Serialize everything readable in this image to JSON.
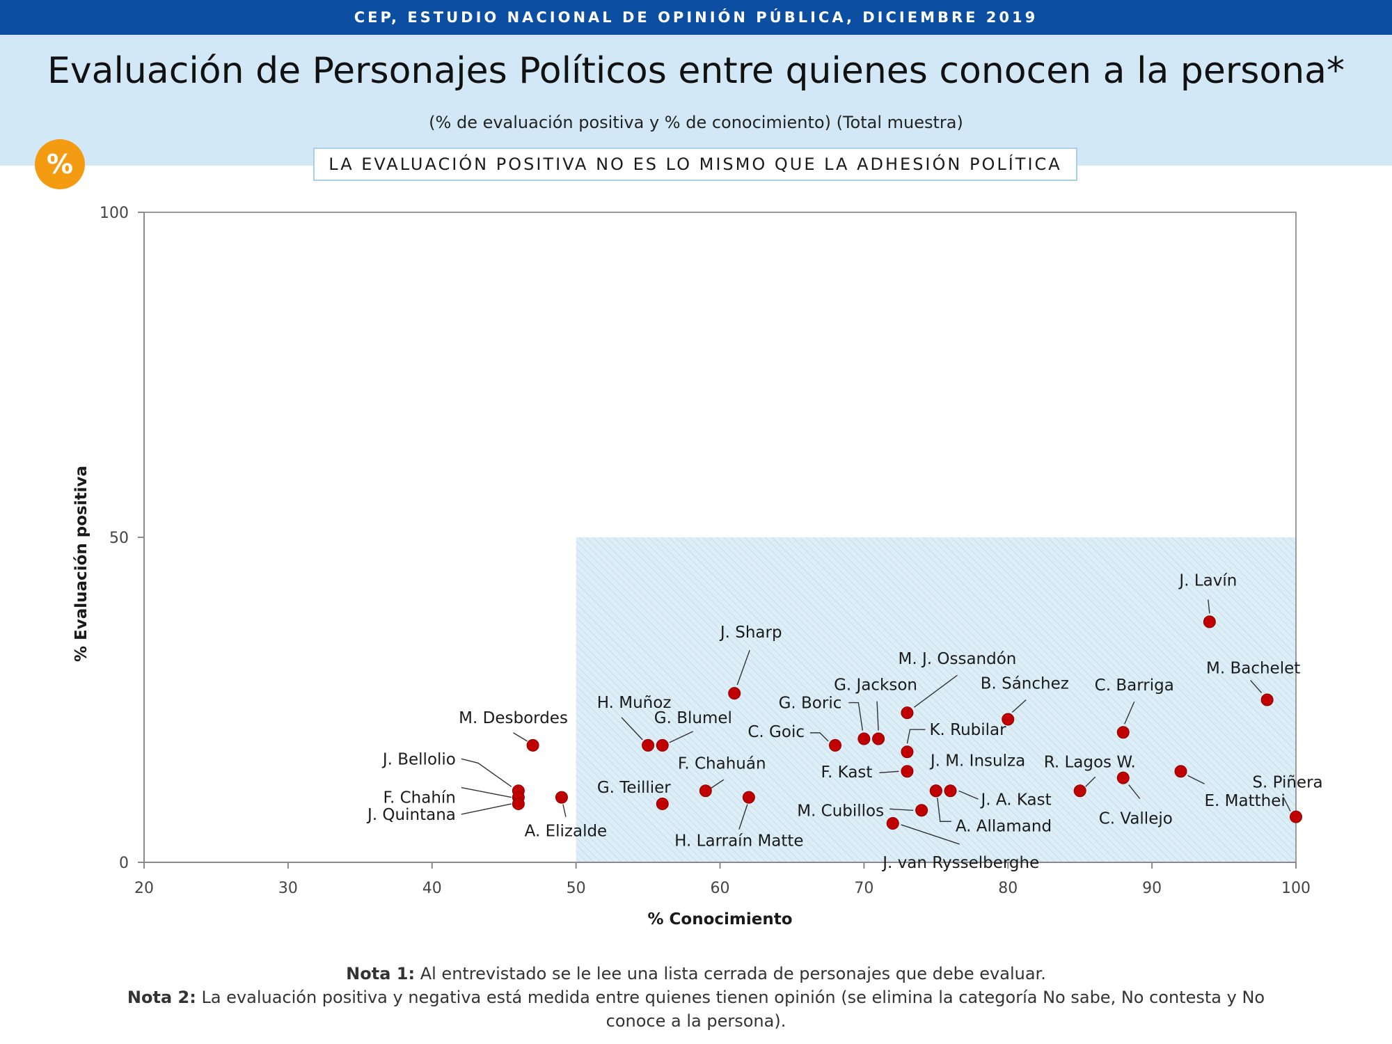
{
  "header": {
    "banner": "CEP, ESTUDIO NACIONAL DE OPINIÓN PÚBLICA, DICIEMBRE 2019",
    "title": "Evaluación de Personajes Políticos entre quienes conocen a la persona*",
    "subtitle": "(% de evaluación positiva y % de conocimiento) (Total muestra)",
    "badge": "%",
    "callout": "LA EVALUACIÓN POSITIVA NO ES LO MISMO QUE LA ADHESIÓN POLÍTICA"
  },
  "notes": {
    "note1_label": "Nota 1:",
    "note1_text": " Al entrevistado se le lee una lista cerrada de personajes que debe evaluar.",
    "note2_label": "Nota 2:",
    "note2_text": " La evaluación positiva y negativa está medida entre quienes tienen opinión (se elimina la categoría No sabe, No contesta y No conoce a la persona)."
  },
  "colors": {
    "banner": "#0b4ea2",
    "band": "#d2e8f6",
    "badge": "#f39c12",
    "marker": "#c00000",
    "shade": "#ddeef7"
  },
  "chart_data": {
    "type": "scatter",
    "xlabel": "% Conocimiento",
    "ylabel": "% Evaluación positiva",
    "xlim": [
      20,
      100
    ],
    "ylim": [
      0,
      100
    ],
    "xticks": [
      20,
      30,
      40,
      50,
      60,
      70,
      80,
      90,
      100
    ],
    "yticks": [
      0,
      50,
      100
    ],
    "grid": false,
    "shaded_region": {
      "x": [
        50,
        100
      ],
      "y": [
        0,
        50
      ]
    },
    "points": [
      {
        "name": "J. Lavín",
        "x": 94,
        "y": 37
      },
      {
        "name": "M. Bachelet",
        "x": 98,
        "y": 25
      },
      {
        "name": "J. Sharp",
        "x": 61,
        "y": 26
      },
      {
        "name": "M. J. Ossandón",
        "x": 73,
        "y": 23
      },
      {
        "name": "B. Sánchez",
        "x": 80,
        "y": 22
      },
      {
        "name": "C. Barriga",
        "x": 88,
        "y": 20
      },
      {
        "name": "G. Jackson",
        "x": 71,
        "y": 19
      },
      {
        "name": "G. Boric",
        "x": 70,
        "y": 19
      },
      {
        "name": "C. Goic",
        "x": 68,
        "y": 18
      },
      {
        "name": "K. Rubilar",
        "x": 73,
        "y": 17
      },
      {
        "name": "H. Muñoz",
        "x": 55,
        "y": 18
      },
      {
        "name": "G. Blumel",
        "x": 56,
        "y": 18
      },
      {
        "name": "M. Desbordes",
        "x": 47,
        "y": 18
      },
      {
        "name": "F. Kast",
        "x": 73,
        "y": 14
      },
      {
        "name": "J. M. Insulza",
        "x": 75,
        "y": 11
      },
      {
        "name": "J. A. Kast",
        "x": 76,
        "y": 11
      },
      {
        "name": "R. Lagos W.",
        "x": 85,
        "y": 11
      },
      {
        "name": "C. Vallejo",
        "x": 88,
        "y": 13
      },
      {
        "name": "E. Matthei",
        "x": 92,
        "y": 14
      },
      {
        "name": "S. Piñera",
        "x": 100,
        "y": 7
      },
      {
        "name": "F. Chahuán",
        "x": 59,
        "y": 11
      },
      {
        "name": "H. Larraín Matte",
        "x": 62,
        "y": 10
      },
      {
        "name": "G. Teillier",
        "x": 56,
        "y": 9
      },
      {
        "name": "A. Elizalde",
        "x": 49,
        "y": 10
      },
      {
        "name": "J. Bellolio",
        "x": 46,
        "y": 11
      },
      {
        "name": "F. Chahín",
        "x": 46,
        "y": 10
      },
      {
        "name": "J. Quintana",
        "x": 46,
        "y": 9
      },
      {
        "name": "M. Cubillos",
        "x": 74,
        "y": 8
      },
      {
        "name": "A. Allamand",
        "x": 75,
        "y": 11
      },
      {
        "name": "J. van Rysselberghe",
        "x": 72,
        "y": 6
      }
    ]
  }
}
